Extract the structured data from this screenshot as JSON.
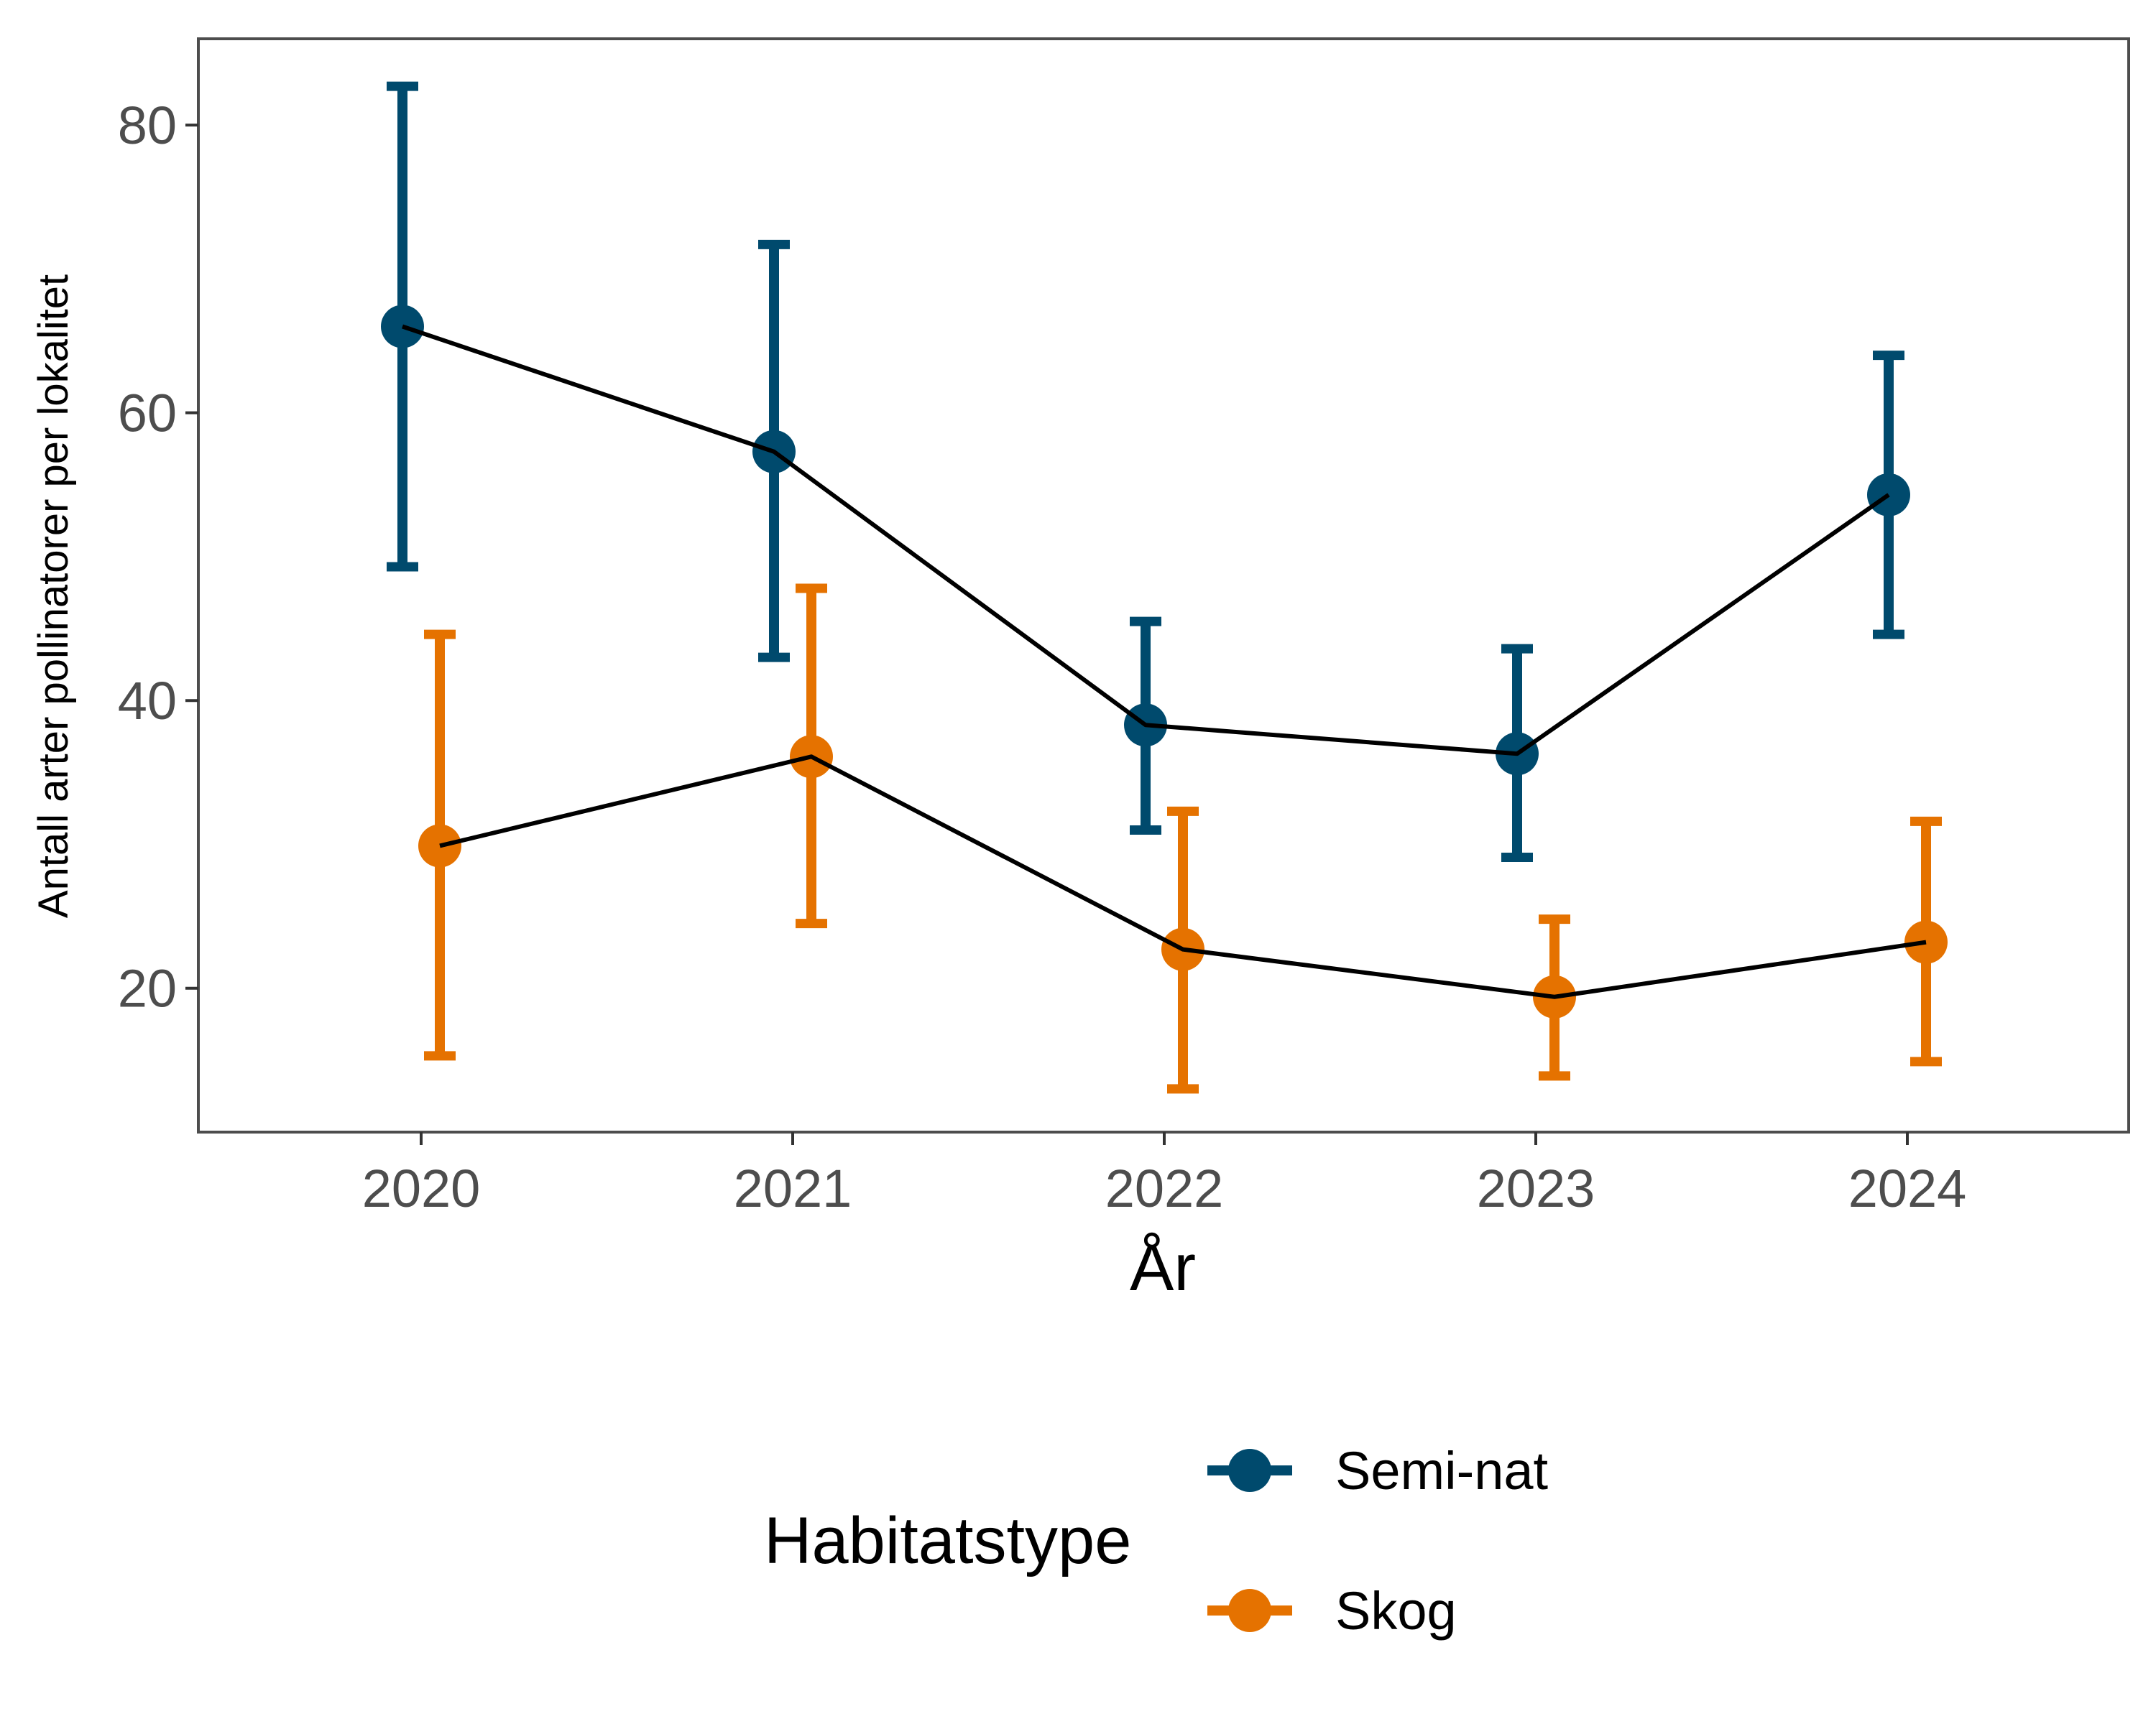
{
  "chart_data": {
    "type": "line",
    "xlabel": "År",
    "ylabel": "Antall arter pollinatorer per lokalitet",
    "categories": [
      "2020",
      "2021",
      "2022",
      "2023",
      "2024"
    ],
    "ylim": [
      10,
      86
    ],
    "yticks": [
      20,
      40,
      60,
      80
    ],
    "grid": false,
    "legend": {
      "title": "Habitatstype",
      "position": "bottom"
    },
    "series": [
      {
        "name": "Semi-nat",
        "color": "#004a6d",
        "values": [
          66.0,
          57.3,
          38.3,
          36.3,
          54.3
        ],
        "lower": [
          49.3,
          43.0,
          31.0,
          29.1,
          44.6
        ],
        "upper": [
          82.7,
          71.7,
          45.5,
          43.6,
          64.0
        ]
      },
      {
        "name": "Skog",
        "color": "#e57200",
        "values": [
          29.9,
          36.1,
          22.7,
          19.4,
          23.2
        ],
        "lower": [
          15.3,
          24.5,
          13.0,
          13.9,
          14.9
        ],
        "upper": [
          44.6,
          47.8,
          32.3,
          24.8,
          31.6
        ]
      }
    ],
    "trend_line_color": "#000000"
  }
}
